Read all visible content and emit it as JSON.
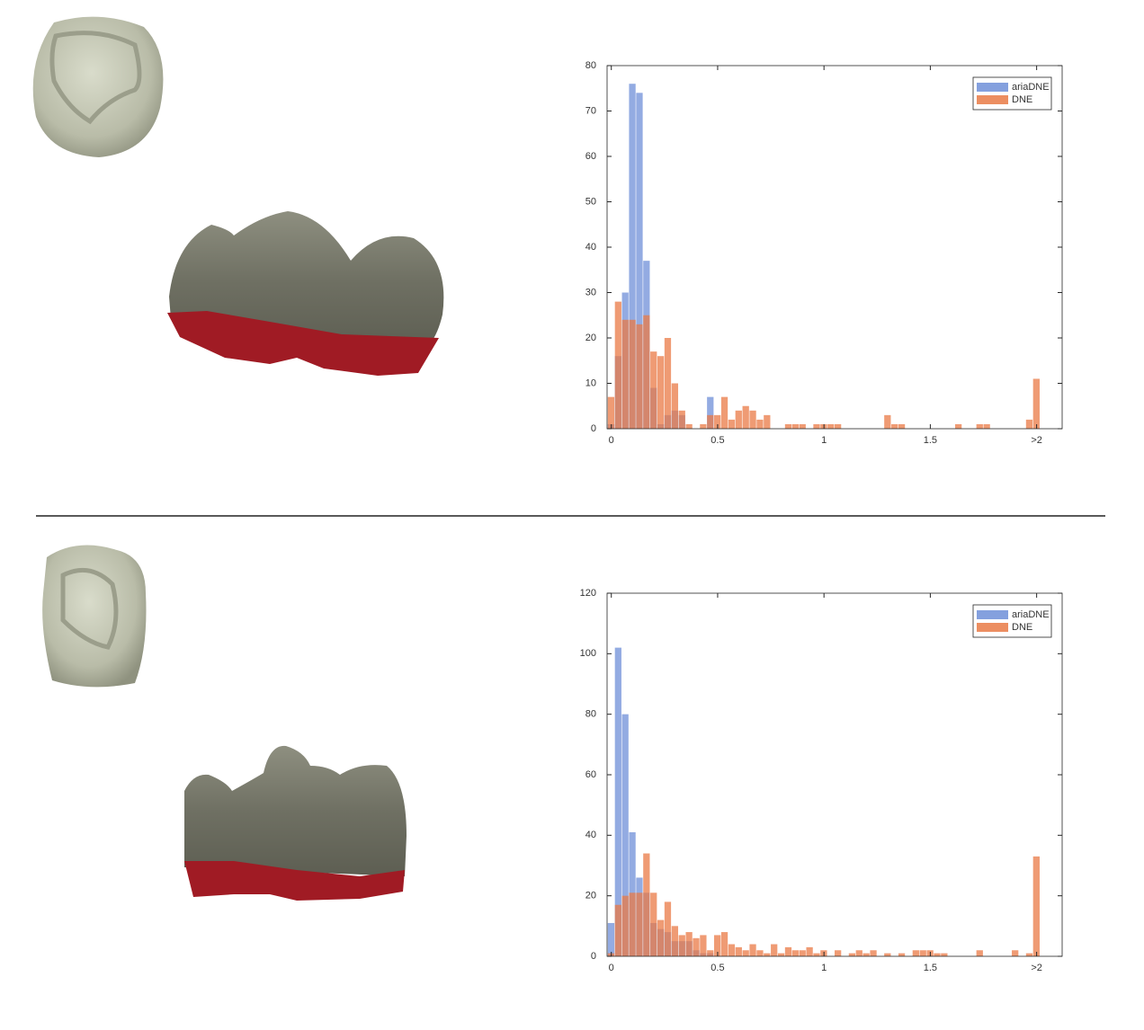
{
  "chart_data": [
    {
      "type": "histogram",
      "legend": "northeast",
      "grid": false,
      "bins": [
        -0.0167,
        0.0167,
        0.05,
        0.0833,
        0.1167,
        0.15,
        0.1833,
        0.2167,
        0.25,
        0.2833,
        0.3167,
        0.35,
        0.3833,
        0.4167,
        0.45,
        0.4833,
        0.5167,
        0.55,
        0.5833,
        0.6167,
        0.65,
        0.6833,
        0.7167,
        0.75,
        0.7833,
        0.8167,
        0.85,
        0.8833,
        0.9167,
        0.95,
        0.9833,
        1.0167,
        1.05,
        1.0833,
        1.1167,
        1.15,
        1.1833,
        1.2167,
        1.25,
        1.2833,
        1.3167,
        1.35,
        1.3833,
        1.4167,
        1.45,
        1.4833,
        1.5167,
        1.55,
        1.5833,
        1.6167,
        1.65,
        1.6833,
        1.7167,
        1.75,
        1.7833,
        1.8167,
        1.85,
        1.8833,
        1.9167,
        1.95,
        1.9833,
        2.0167
      ],
      "xlim": [
        -0.02,
        2.12
      ],
      "xticks": [
        0,
        0.5,
        1,
        1.5,
        {
          "value": 2,
          "label": ">2"
        }
      ],
      "ylim": [
        0,
        80
      ],
      "yticks": [
        0,
        10,
        20,
        30,
        40,
        50,
        60,
        70,
        80
      ],
      "series": [
        {
          "name": "ariaDNE",
          "color": "#6f8fd8",
          "values": [
            1,
            16,
            30,
            76,
            74,
            37,
            9,
            1,
            3,
            4,
            3,
            0,
            0,
            0,
            7,
            0,
            0,
            0,
            0,
            0,
            0,
            0,
            0,
            0,
            0,
            0,
            0,
            0,
            0,
            0,
            0,
            0,
            0,
            0,
            0,
            0,
            0,
            0,
            0,
            0,
            0,
            0,
            0,
            0,
            0,
            0,
            0,
            0,
            0,
            0,
            0,
            0,
            0,
            0,
            0,
            0,
            0,
            0,
            0,
            0,
            0
          ]
        },
        {
          "name": "DNE",
          "color": "#e97a45",
          "values": [
            7,
            28,
            24,
            24,
            23,
            25,
            17,
            16,
            20,
            10,
            4,
            1,
            0,
            1,
            3,
            3,
            7,
            2,
            4,
            5,
            4,
            2,
            3,
            0,
            0,
            1,
            1,
            1,
            0,
            1,
            1,
            1,
            1,
            0,
            0,
            0,
            0,
            0,
            0,
            3,
            1,
            1,
            0,
            0,
            0,
            0,
            0,
            0,
            0,
            1,
            0,
            0,
            1,
            1,
            0,
            0,
            0,
            0,
            0,
            2,
            11
          ]
        }
      ]
    },
    {
      "type": "histogram",
      "legend": "northeast",
      "grid": false,
      "bins": [
        -0.0167,
        0.0167,
        0.05,
        0.0833,
        0.1167,
        0.15,
        0.1833,
        0.2167,
        0.25,
        0.2833,
        0.3167,
        0.35,
        0.3833,
        0.4167,
        0.45,
        0.4833,
        0.5167,
        0.55,
        0.5833,
        0.6167,
        0.65,
        0.6833,
        0.7167,
        0.75,
        0.7833,
        0.8167,
        0.85,
        0.8833,
        0.9167,
        0.95,
        0.9833,
        1.0167,
        1.05,
        1.0833,
        1.1167,
        1.15,
        1.1833,
        1.2167,
        1.25,
        1.2833,
        1.3167,
        1.35,
        1.3833,
        1.4167,
        1.45,
        1.4833,
        1.5167,
        1.55,
        1.5833,
        1.6167,
        1.65,
        1.6833,
        1.7167,
        1.75,
        1.7833,
        1.8167,
        1.85,
        1.8833,
        1.9167,
        1.95,
        1.9833,
        2.0167
      ],
      "xlim": [
        -0.02,
        2.12
      ],
      "xticks": [
        0,
        0.5,
        1,
        1.5,
        {
          "value": 2,
          "label": ">2"
        }
      ],
      "ylim": [
        0,
        120
      ],
      "yticks": [
        0,
        20,
        40,
        60,
        80,
        100,
        120
      ],
      "series": [
        {
          "name": "ariaDNE",
          "color": "#6f8fd8",
          "values": [
            11,
            102,
            80,
            41,
            26,
            21,
            11,
            9,
            8,
            5,
            5,
            5,
            2,
            1,
            1,
            0,
            0,
            0,
            0,
            0,
            0,
            0,
            0,
            0,
            0,
            0,
            0,
            0,
            0,
            0,
            0,
            0,
            0,
            0,
            0,
            0,
            0,
            0,
            0,
            0,
            0,
            0,
            0,
            0,
            0,
            0,
            0,
            0,
            0,
            0,
            0,
            0,
            0,
            0,
            0,
            0,
            0,
            0,
            0,
            0,
            0
          ]
        },
        {
          "name": "DNE",
          "color": "#e97a45",
          "values": [
            1,
            17,
            20,
            21,
            21,
            34,
            21,
            12,
            18,
            10,
            7,
            8,
            6,
            7,
            2,
            7,
            8,
            4,
            3,
            2,
            4,
            2,
            1,
            4,
            1,
            3,
            2,
            2,
            3,
            1,
            2,
            0,
            2,
            0,
            1,
            2,
            1,
            2,
            0,
            1,
            0,
            1,
            0,
            2,
            2,
            2,
            1,
            1,
            0,
            0,
            0,
            0,
            2,
            0,
            0,
            0,
            0,
            2,
            0,
            1,
            33
          ]
        }
      ]
    }
  ]
}
